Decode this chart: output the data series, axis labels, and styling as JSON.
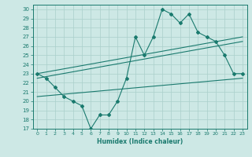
{
  "xlabel": "Humidex (Indice chaleur)",
  "ylabel": "",
  "bg_color": "#cde8e5",
  "line_color": "#1a7a6e",
  "grid_color": "#aacfcb",
  "xlim": [
    -0.5,
    23.5
  ],
  "ylim": [
    17,
    30.5
  ],
  "xticks": [
    0,
    1,
    2,
    3,
    4,
    5,
    6,
    7,
    8,
    9,
    10,
    11,
    12,
    13,
    14,
    15,
    16,
    17,
    18,
    19,
    20,
    21,
    22,
    23
  ],
  "yticks": [
    17,
    18,
    19,
    20,
    21,
    22,
    23,
    24,
    25,
    26,
    27,
    28,
    29,
    30
  ],
  "main_line_x": [
    0,
    1,
    2,
    3,
    4,
    5,
    6,
    7,
    8,
    9,
    10,
    11,
    12,
    13,
    14,
    15,
    16,
    17,
    18,
    19,
    20,
    21,
    22,
    23
  ],
  "main_line_y": [
    23,
    22.5,
    21.5,
    20.5,
    20,
    19.5,
    17,
    18.5,
    18.5,
    20,
    22.5,
    27,
    25,
    27,
    30,
    29.5,
    28.5,
    29.5,
    27.5,
    27,
    26.5,
    25,
    23,
    23
  ],
  "trend1_x": [
    0,
    23
  ],
  "trend1_y": [
    23.0,
    27.0
  ],
  "trend2_x": [
    0,
    23
  ],
  "trend2_y": [
    22.5,
    26.5
  ],
  "flat_line_x": [
    0,
    23
  ],
  "flat_line_y": [
    20.5,
    22.5
  ]
}
